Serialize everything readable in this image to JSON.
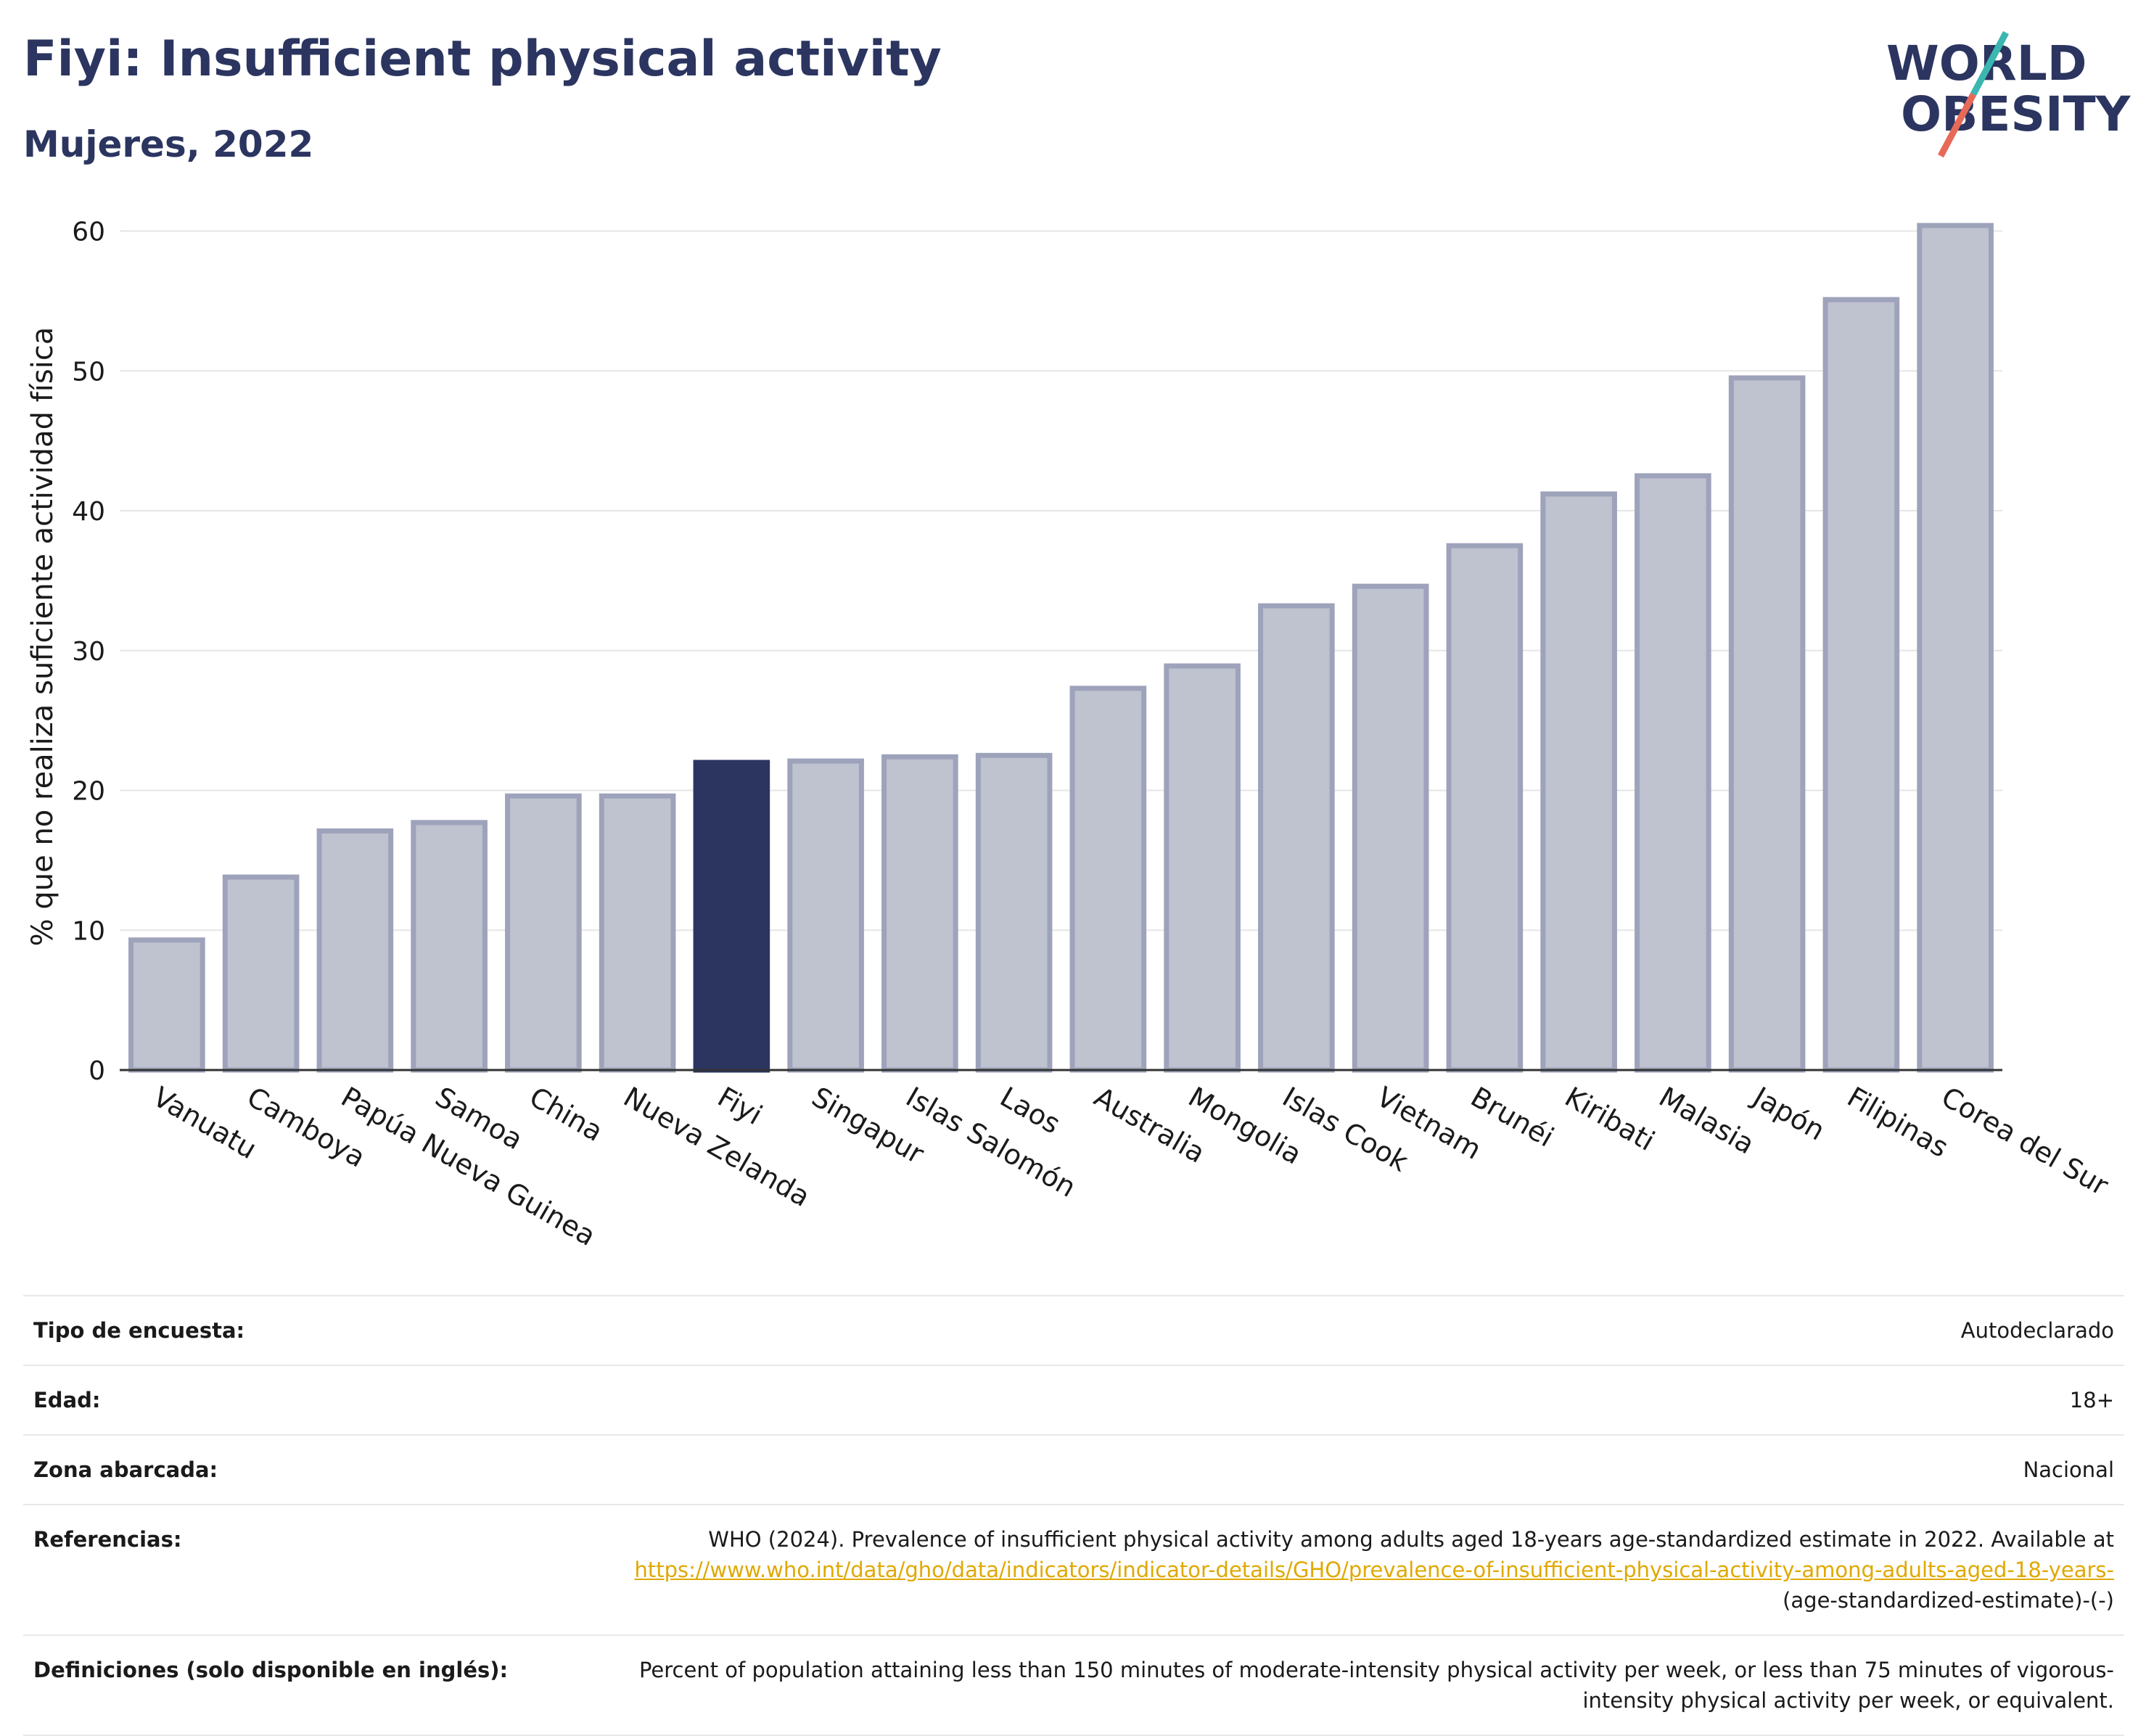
{
  "header": {
    "title": "Fiyi: Insufficient physical activity",
    "subtitle": "Mujeres, 2022"
  },
  "logo": {
    "line1": "WORLD",
    "line2": "OBESITY",
    "name": "world-obesity-logo"
  },
  "colors": {
    "bar": "#bfc2cf",
    "bar_stroke": "#9ea3bb",
    "highlight": "#2b3560",
    "text": "#2b3560"
  },
  "chart_data": {
    "type": "bar",
    "ylabel": "% que no realiza suficiente actividad física",
    "ylim": [
      0,
      62
    ],
    "yticks": [
      0,
      10,
      20,
      30,
      40,
      50,
      60
    ],
    "grid": true,
    "highlight": "Fiyi",
    "categories": [
      "Vanuatu",
      "Camboya",
      "Papúa Nueva Guinea",
      "Samoa",
      "China",
      "Nueva Zelanda",
      "Fiyi",
      "Singapur",
      "Islas Salomón",
      "Laos",
      "Australia",
      "Mongolia",
      "Islas Cook",
      "Vietnam",
      "Brunéi",
      "Kiribati",
      "Malasia",
      "Japón",
      "Filipinas",
      "Corea del Sur"
    ],
    "values": [
      9.3,
      13.8,
      17.1,
      17.7,
      19.6,
      19.6,
      22.0,
      22.1,
      22.4,
      22.5,
      27.3,
      28.9,
      33.2,
      34.6,
      37.5,
      41.2,
      42.5,
      49.5,
      55.1,
      60.4
    ]
  },
  "info": {
    "survey_label": "Tipo de encuesta:",
    "survey_value": "Autodeclarado",
    "age_label": "Edad:",
    "age_value": "18+",
    "area_label": "Zona abarcada:",
    "area_value": "Nacional",
    "refs_label": "Referencias:",
    "refs_text": "WHO (2024). Prevalence of insufficient physical activity among adults aged 18-years age-standardized estimate in 2022. Available at",
    "refs_link": "https://www.who.int/data/gho/data/indicators/indicator-details/GHO/prevalence-of-insufficient-physical-activity-among-adults-aged-18-years-",
    "refs_suffix": "(age-standardized-estimate)-(-)",
    "defs_label": "Definiciones (solo disponible en inglés):",
    "defs_value": "Percent of population attaining less than 150 minutes of moderate-intensity physical activity per week, or less than 75 minutes of vigorous-intensity physical activity per week, or equivalent."
  }
}
